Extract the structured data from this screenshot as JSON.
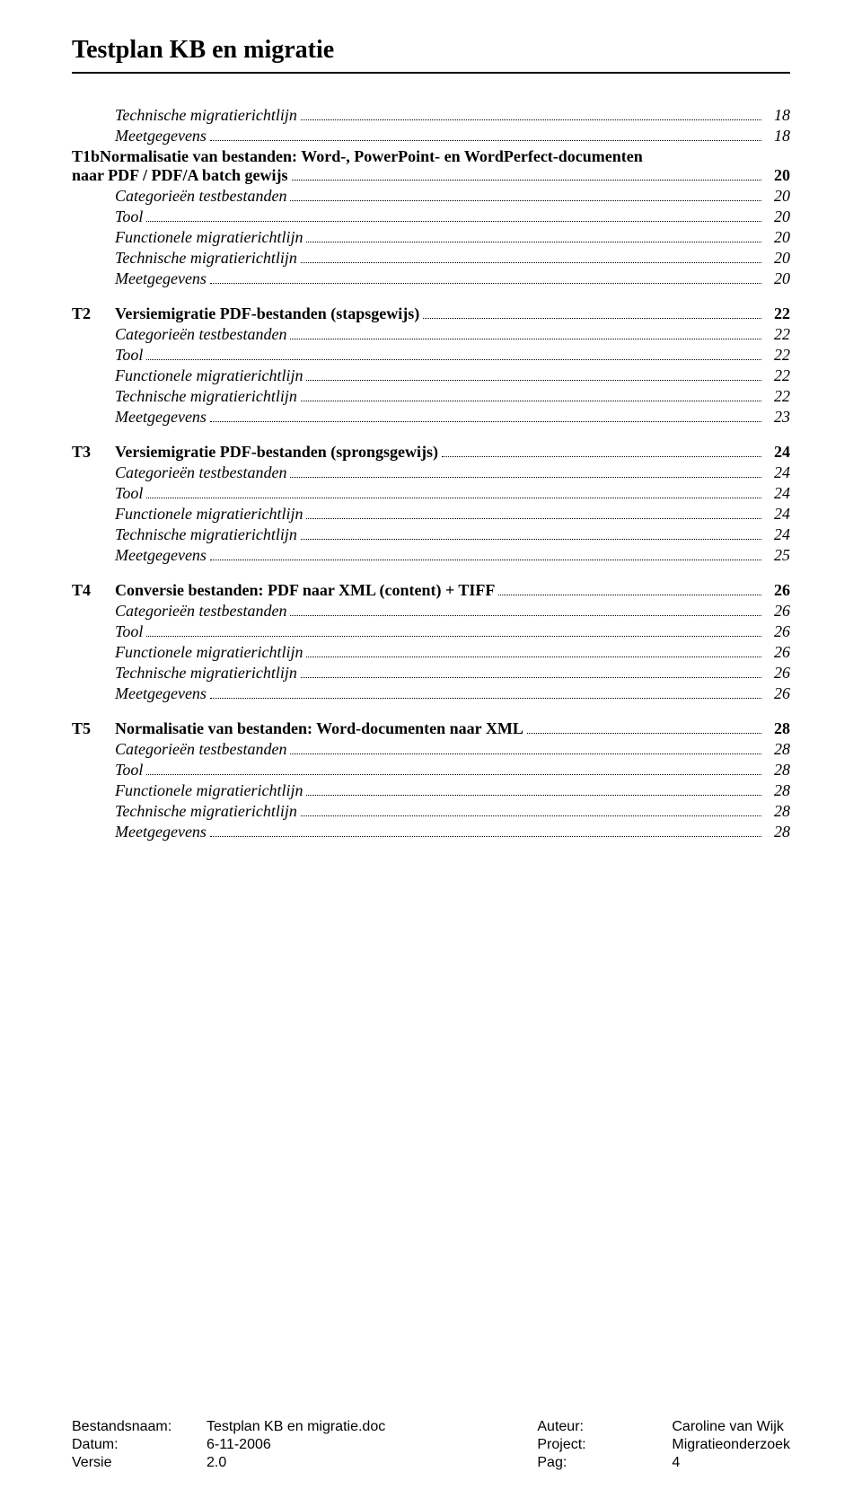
{
  "doc_title": "Testplan KB en migratie",
  "toc": [
    {
      "type": "italic",
      "label": "Technische migratierichtlijn",
      "page": "18",
      "indent": true
    },
    {
      "type": "italic",
      "label": "Meetgegevens",
      "page": "18",
      "indent": true
    },
    {
      "type": "bold",
      "code": "T1b",
      "label": "Normalisatie van bestanden: Word-, PowerPoint- en WordPerfect-documenten naar PDF / PDF/A batch gewijs",
      "page": "20",
      "wrap": true
    },
    {
      "type": "italic",
      "label": "Categorieën testbestanden",
      "page": "20",
      "indent": true
    },
    {
      "type": "italic",
      "label": "Tool",
      "page": "20",
      "indent": true
    },
    {
      "type": "italic",
      "label": "Functionele migratierichtlijn",
      "page": "20",
      "indent": true
    },
    {
      "type": "italic",
      "label": "Technische migratierichtlijn",
      "page": "20",
      "indent": true
    },
    {
      "type": "italic",
      "label": "Meetgegevens",
      "page": "20",
      "indent": true
    },
    {
      "type": "gap"
    },
    {
      "type": "bold",
      "code": "T2",
      "label": "Versiemigratie PDF-bestanden (stapsgewijs)",
      "page": "22"
    },
    {
      "type": "italic",
      "label": "Categorieën testbestanden",
      "page": "22",
      "indent": true
    },
    {
      "type": "italic",
      "label": "Tool",
      "page": "22",
      "indent": true
    },
    {
      "type": "italic",
      "label": "Functionele migratierichtlijn",
      "page": "22",
      "indent": true
    },
    {
      "type": "italic",
      "label": "Technische migratierichtlijn",
      "page": "22",
      "indent": true
    },
    {
      "type": "italic",
      "label": "Meetgegevens",
      "page": "23",
      "indent": true
    },
    {
      "type": "gap"
    },
    {
      "type": "bold",
      "code": "T3",
      "label": "Versiemigratie PDF-bestanden (sprongsgewijs)",
      "page": "24"
    },
    {
      "type": "italic",
      "label": "Categorieën testbestanden",
      "page": "24",
      "indent": true
    },
    {
      "type": "italic",
      "label": "Tool",
      "page": "24",
      "indent": true
    },
    {
      "type": "italic",
      "label": "Functionele migratierichtlijn",
      "page": "24",
      "indent": true
    },
    {
      "type": "italic",
      "label": "Technische migratierichtlijn",
      "page": "24",
      "indent": true
    },
    {
      "type": "italic",
      "label": "Meetgegevens",
      "page": "25",
      "indent": true
    },
    {
      "type": "gap"
    },
    {
      "type": "bold",
      "code": "T4",
      "label": "Conversie bestanden: PDF naar XML (content) + TIFF",
      "page": "26"
    },
    {
      "type": "italic",
      "label": "Categorieën testbestanden",
      "page": "26",
      "indent": true
    },
    {
      "type": "italic",
      "label": "Tool",
      "page": "26",
      "indent": true
    },
    {
      "type": "italic",
      "label": "Functionele migratierichtlijn",
      "page": "26",
      "indent": true
    },
    {
      "type": "italic",
      "label": "Technische migratierichtlijn",
      "page": "26",
      "indent": true
    },
    {
      "type": "italic",
      "label": "Meetgegevens",
      "page": "26",
      "indent": true
    },
    {
      "type": "gap"
    },
    {
      "type": "bold",
      "code": "T5",
      "label": "Normalisatie van bestanden: Word-documenten naar XML",
      "page": "28"
    },
    {
      "type": "italic",
      "label": "Categorieën testbestanden",
      "page": "28",
      "indent": true
    },
    {
      "type": "italic",
      "label": "Tool",
      "page": "28",
      "indent": true
    },
    {
      "type": "italic",
      "label": "Functionele migratierichtlijn",
      "page": "28",
      "indent": true
    },
    {
      "type": "italic",
      "label": "Technische migratierichtlijn",
      "page": "28",
      "indent": true
    },
    {
      "type": "italic",
      "label": "Meetgegevens",
      "page": "28",
      "indent": true
    }
  ],
  "footer": {
    "left": [
      {
        "key": "Bestandsnaam:",
        "val": "Testplan KB en migratie.doc"
      },
      {
        "key": "Datum:",
        "val": "6-11-2006"
      },
      {
        "key": "Versie",
        "val": "2.0"
      }
    ],
    "right": [
      {
        "key": "Auteur:",
        "val": "Caroline van Wijk"
      },
      {
        "key": "Project:",
        "val": "Migratieonderzoek"
      },
      {
        "key": "Pag:",
        "val": "4"
      }
    ]
  }
}
